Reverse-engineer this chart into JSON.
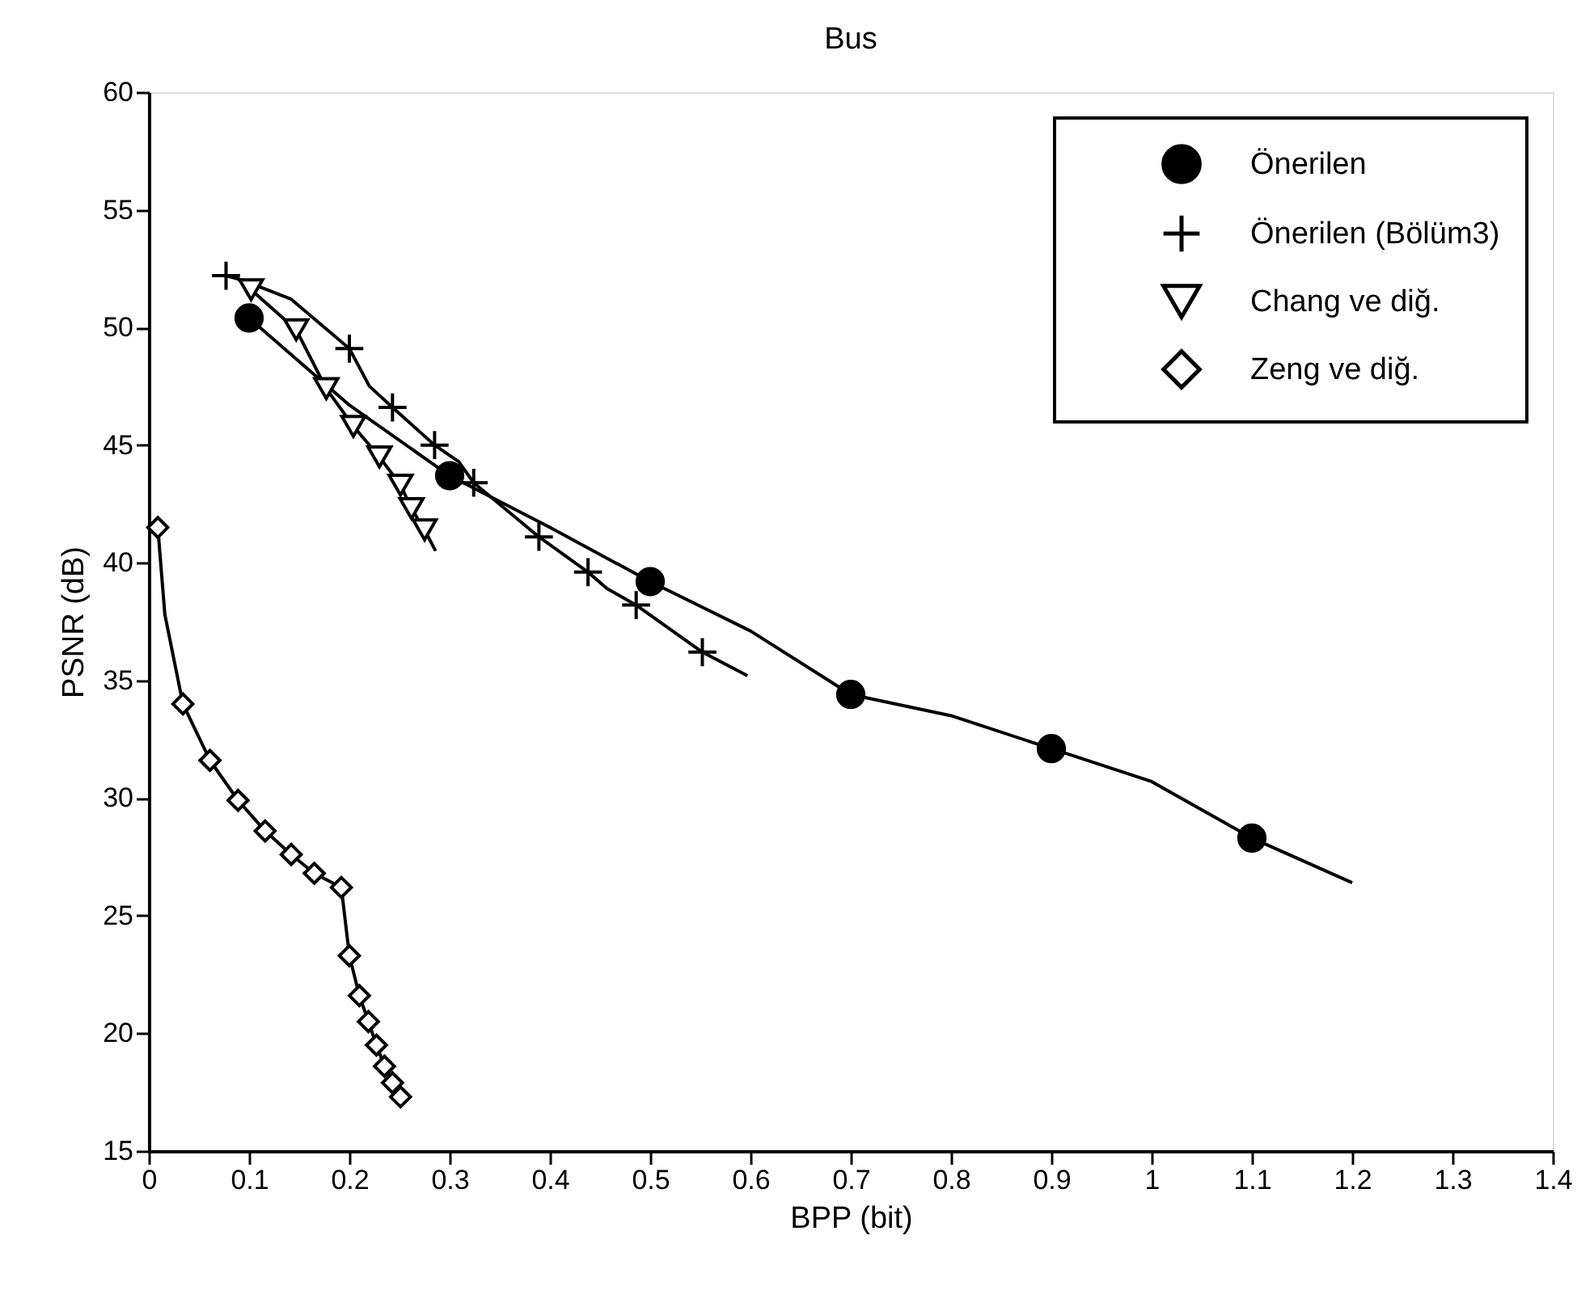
{
  "chart_data": {
    "type": "line",
    "title": "Bus",
    "xlabel": "BPP (bit)",
    "ylabel": "PSNR (dB)",
    "xlim": [
      0,
      1.4
    ],
    "ylim": [
      15,
      60
    ],
    "xticks": [
      0,
      0.1,
      0.2,
      0.3,
      0.4,
      0.5,
      0.6,
      0.7,
      0.8,
      0.9,
      1,
      1.1,
      1.2,
      1.3,
      1.4
    ],
    "yticks": [
      15,
      20,
      25,
      30,
      35,
      40,
      45,
      50,
      55,
      60
    ],
    "grid": false,
    "legend": "top right",
    "series": [
      {
        "color": "#000000",
        "x": [
          0.1,
          0.2,
          0.3,
          0.4,
          0.5,
          0.6,
          0.7,
          0.8,
          0.9,
          1.0,
          1.1,
          1.2
        ],
        "values": [
          50.4,
          46.7,
          43.7,
          41.5,
          39.2,
          37.1,
          34.4,
          33.5,
          32.1,
          30.7,
          28.3,
          26.4
        ]
      },
      {
        "type": "scatter",
        "name": "Önerilen",
        "color": "#000000",
        "marker": "circle",
        "x": [
          0.1,
          0.3,
          0.5,
          0.7,
          0.9,
          1.1
        ],
        "values": [
          50.4,
          43.7,
          39.2,
          34.4,
          32.1,
          28.3
        ]
      },
      {
        "color": "#000000",
        "x": [
          0.077,
          0.094,
          0.142,
          0.2,
          0.22,
          0.243,
          0.285,
          0.309,
          0.324,
          0.389,
          0.438,
          0.457,
          0.486,
          0.552,
          0.597
        ],
        "values": [
          52.2,
          52.0,
          51.2,
          49.1,
          47.5,
          46.6,
          45.0,
          44.3,
          43.4,
          41.1,
          39.6,
          38.9,
          38.2,
          36.2,
          35.2
        ]
      },
      {
        "type": "scatter",
        "name": "Önerilen (Bölüm3)",
        "color": "#000000",
        "marker": "cross",
        "x": [
          0.077,
          0.2,
          0.243,
          0.285,
          0.324,
          0.389,
          0.438,
          0.486,
          0.552
        ],
        "values": [
          52.2,
          49.1,
          46.6,
          45.0,
          43.4,
          41.1,
          39.6,
          38.2,
          36.2
        ]
      },
      {
        "color": "#000000",
        "x": [
          0.088,
          0.102,
          0.147,
          0.177,
          0.204,
          0.23,
          0.251,
          0.262,
          0.275,
          0.286
        ],
        "values": [
          52.1,
          51.6,
          49.9,
          47.4,
          45.8,
          44.5,
          43.3,
          42.3,
          41.4,
          40.5
        ]
      },
      {
        "type": "scatter",
        "name": "Chang ve diğ.",
        "color": "#000000",
        "marker": "triangle",
        "x": [
          0.102,
          0.147,
          0.177,
          0.204,
          0.23,
          0.251,
          0.262,
          0.275
        ],
        "values": [
          51.6,
          49.9,
          47.4,
          45.8,
          44.5,
          43.3,
          42.3,
          41.4
        ]
      },
      {
        "color": "#000000",
        "x": [
          0.009,
          0.016,
          0.034,
          0.061,
          0.089,
          0.116,
          0.142,
          0.165,
          0.192,
          0.2,
          0.21,
          0.219,
          0.227,
          0.235,
          0.243,
          0.251
        ],
        "values": [
          41.5,
          37.8,
          34.0,
          31.6,
          29.9,
          28.6,
          27.6,
          26.8,
          26.2,
          23.3,
          21.6,
          20.5,
          19.5,
          18.6,
          17.9,
          17.3
        ]
      },
      {
        "type": "scatter",
        "name": "Zeng ve diğ.",
        "color": "#000000",
        "marker": "diamond",
        "x": [
          0.009,
          0.034,
          0.061,
          0.089,
          0.116,
          0.142,
          0.165,
          0.192,
          0.2,
          0.21,
          0.219,
          0.227,
          0.235,
          0.243,
          0.251
        ],
        "values": [
          41.5,
          34.0,
          31.6,
          29.9,
          28.6,
          27.6,
          26.8,
          26.2,
          23.3,
          21.6,
          20.5,
          19.5,
          18.6,
          17.9,
          17.3
        ]
      }
    ]
  }
}
